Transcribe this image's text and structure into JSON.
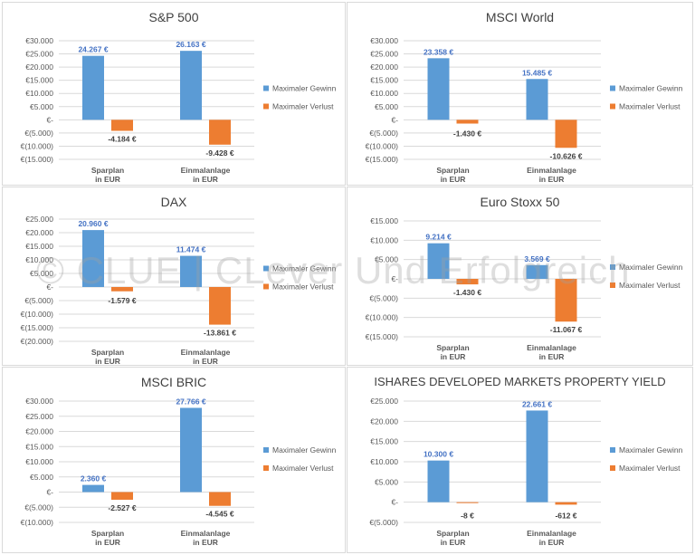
{
  "watermark": "© CLUE | CLever Und Erfolgreich",
  "legend": {
    "gain": "Maximaler Gewinn",
    "loss": "Maximaler Verlust"
  },
  "colors": {
    "gain": "#5b9bd5",
    "loss": "#ed7d31",
    "gain_label": "#4472c4",
    "loss_label": "#404040",
    "axis_text": "#595959",
    "grid": "#d9d9d9"
  },
  "chart_data": [
    {
      "type": "bar",
      "title": "S&P 500",
      "categories": [
        [
          "Sparplan",
          "in  EUR"
        ],
        [
          "Einmalanlage",
          "in EUR"
        ]
      ],
      "series": [
        {
          "name": "Maximaler Gewinn",
          "values": [
            24267,
            26163
          ],
          "labels": [
            "24.267 €",
            "26.163 €"
          ]
        },
        {
          "name": "Maximaler Verlust",
          "values": [
            -4184,
            -9428
          ],
          "labels": [
            "-4.184 €",
            "-9.428 €"
          ]
        }
      ],
      "ylim": [
        -15000,
        30000
      ],
      "yticks": [
        30000,
        25000,
        20000,
        15000,
        10000,
        5000,
        0,
        -5000,
        -10000,
        -15000
      ],
      "yticklabels": [
        "€30.000",
        "€25.000",
        "€20.000",
        "€15.000",
        "€10.000",
        "€5.000",
        "€-",
        "€(5.000)",
        "€(10.000)",
        "€(15.000)"
      ],
      "legend": "right"
    },
    {
      "type": "bar",
      "title": "MSCI World",
      "categories": [
        [
          "Sparplan",
          "in  EUR"
        ],
        [
          "Einmalanlage",
          "in EUR"
        ]
      ],
      "series": [
        {
          "name": "Maximaler Gewinn",
          "values": [
            23358,
            15485
          ],
          "labels": [
            "23.358 €",
            "15.485 €"
          ]
        },
        {
          "name": "Maximaler Verlust",
          "values": [
            -1430,
            -10626
          ],
          "labels": [
            "-1.430 €",
            "-10.626 €"
          ]
        }
      ],
      "ylim": [
        -15000,
        30000
      ],
      "yticks": [
        30000,
        25000,
        20000,
        15000,
        10000,
        5000,
        0,
        -5000,
        -10000,
        -15000
      ],
      "yticklabels": [
        "€30.000",
        "€25.000",
        "€20.000",
        "€15.000",
        "€10.000",
        "€5.000",
        "€-",
        "€(5.000)",
        "€(10.000)",
        "€(15.000)"
      ],
      "legend": "right"
    },
    {
      "type": "bar",
      "title": "DAX",
      "categories": [
        [
          "Sparplan",
          "in  EUR"
        ],
        [
          "Einmalanlage",
          "in EUR"
        ]
      ],
      "series": [
        {
          "name": "Maximaler Gewinn",
          "values": [
            20960,
            11474
          ],
          "labels": [
            "20.960 €",
            "11.474 €"
          ]
        },
        {
          "name": "Maximaler Verlust",
          "values": [
            -1579,
            -13861
          ],
          "labels": [
            "-1.579 €",
            "-13.861 €"
          ]
        }
      ],
      "ylim": [
        -20000,
        25000
      ],
      "yticks": [
        25000,
        20000,
        15000,
        10000,
        5000,
        0,
        -5000,
        -10000,
        -15000,
        -20000
      ],
      "yticklabels": [
        "€25.000",
        "€20.000",
        "€15.000",
        "€10.000",
        "€5.000",
        "€-",
        "€(5.000)",
        "€(10.000)",
        "€(15.000)",
        "€(20.000)"
      ],
      "legend": "right"
    },
    {
      "type": "bar",
      "title": "Euro Stoxx 50",
      "categories": [
        [
          "Sparplan",
          "in  EUR"
        ],
        [
          "Einmalanlage",
          "in EUR"
        ]
      ],
      "series": [
        {
          "name": "Maximaler Gewinn",
          "values": [
            9214,
            3569
          ],
          "labels": [
            "9.214 €",
            "3.569 €"
          ]
        },
        {
          "name": "Maximaler Verlust",
          "values": [
            -1430,
            -11067
          ],
          "labels": [
            "-1.430 €",
            "-11.067 €"
          ]
        }
      ],
      "ylim": [
        -15000,
        15000
      ],
      "yticks": [
        15000,
        10000,
        5000,
        0,
        -5000,
        -10000,
        -15000
      ],
      "yticklabels": [
        "€15.000",
        "€10.000",
        "€5.000",
        "€-",
        "€(5.000)",
        "€(10.000)",
        "€(15.000)"
      ],
      "legend": "right"
    },
    {
      "type": "bar",
      "title": "MSCI BRIC",
      "categories": [
        [
          "Sparplan",
          "in  EUR"
        ],
        [
          "Einmalanlage",
          "in EUR"
        ]
      ],
      "series": [
        {
          "name": "Maximaler Gewinn",
          "values": [
            2360,
            27766
          ],
          "labels": [
            "2.360 €",
            "27.766 €"
          ]
        },
        {
          "name": "Maximaler Verlust",
          "values": [
            -2527,
            -4545
          ],
          "labels": [
            "-2.527 €",
            "-4.545 €"
          ]
        }
      ],
      "ylim": [
        -10000,
        30000
      ],
      "yticks": [
        30000,
        25000,
        20000,
        15000,
        10000,
        5000,
        0,
        -5000,
        -10000
      ],
      "yticklabels": [
        "€30.000",
        "€25.000",
        "€20.000",
        "€15.000",
        "€10.000",
        "€5.000",
        "€-",
        "€(5.000)",
        "€(10.000)"
      ],
      "legend": "right"
    },
    {
      "type": "bar",
      "title": "ISHARES DEVELOPED MARKETS PROPERTY YIELD",
      "categories": [
        [
          "Sparplan",
          "in  EUR"
        ],
        [
          "Einmalanlage",
          "in EUR"
        ]
      ],
      "series": [
        {
          "name": "Maximaler Gewinn",
          "values": [
            10300,
            22661
          ],
          "labels": [
            "10.300 €",
            "22.661 €"
          ]
        },
        {
          "name": "Maximaler Verlust",
          "values": [
            -8,
            -612
          ],
          "labels": [
            "-8 €",
            "-612 €"
          ]
        }
      ],
      "ylim": [
        -5000,
        25000
      ],
      "yticks": [
        25000,
        20000,
        15000,
        10000,
        5000,
        0,
        -5000
      ],
      "yticklabels": [
        "€25.000",
        "€20.000",
        "€15.000",
        "€10.000",
        "€5.000",
        "€-",
        "€(5.000)"
      ],
      "legend": "right"
    }
  ]
}
